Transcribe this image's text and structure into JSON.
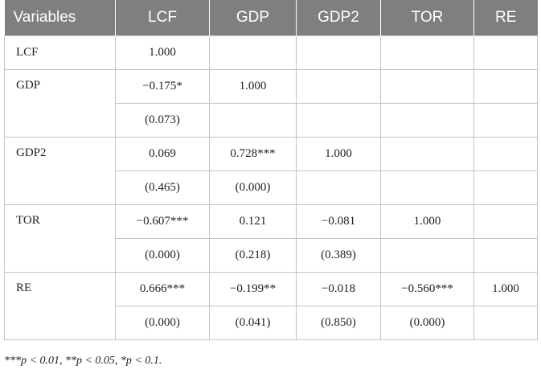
{
  "table": {
    "headers": [
      "Variables",
      "LCF",
      "GDP",
      "GDP2",
      "TOR",
      "RE"
    ],
    "rows": [
      {
        "label": "LCF",
        "values": [
          "1.000",
          "",
          "",
          "",
          ""
        ]
      },
      {
        "label": "GDP",
        "values": [
          "−0.175*",
          "1.000",
          "",
          "",
          ""
        ],
        "pvalues": [
          "(0.073)",
          "",
          "",
          "",
          ""
        ]
      },
      {
        "label": "GDP2",
        "values": [
          "0.069",
          "0.728***",
          "1.000",
          "",
          ""
        ],
        "pvalues": [
          "(0.465)",
          "(0.000)",
          "",
          "",
          ""
        ]
      },
      {
        "label": "TOR",
        "values": [
          "−0.607***",
          "0.121",
          "−0.081",
          "1.000",
          ""
        ],
        "pvalues": [
          "(0.000)",
          "(0.218)",
          "(0.389)",
          "",
          ""
        ]
      },
      {
        "label": "RE",
        "values": [
          "0.666***",
          "−0.199**",
          "−0.018",
          "−0.560***",
          "1.000"
        ],
        "pvalues": [
          "(0.000)",
          "(0.041)",
          "(0.850)",
          "(0.000)",
          ""
        ]
      }
    ]
  },
  "footnote": "***p < 0.01, **p < 0.05, *p < 0.1."
}
